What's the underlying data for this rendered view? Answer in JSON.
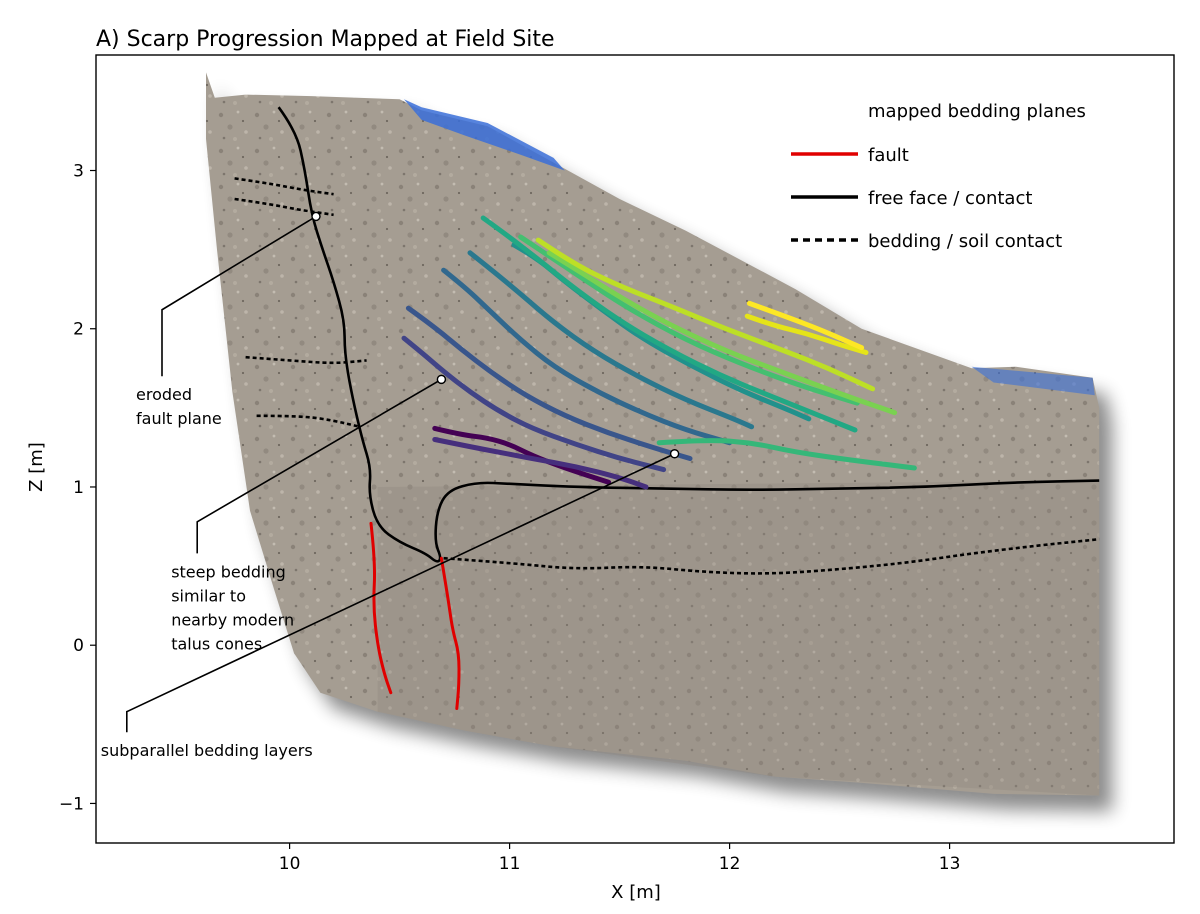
{
  "chart_data": {
    "type": "line",
    "title": "A) Scarp Progression Mapped at Field Site",
    "xlabel": "X [m]",
    "ylabel": "Z [m]",
    "xlim": [
      9.12,
      14.02
    ],
    "ylim": [
      -1.25,
      3.73
    ],
    "xticks": [
      10,
      11,
      12,
      13
    ],
    "yticks": [
      -1,
      0,
      1,
      2,
      3
    ],
    "xtick_labels": [
      "10",
      "11",
      "12",
      "13"
    ],
    "ytick_labels": [
      "−1",
      "0",
      "1",
      "2",
      "3"
    ],
    "grid": false,
    "legend_position": "top-right",
    "legend": [
      {
        "label": "mapped bedding planes",
        "style": "viridis-gradient"
      },
      {
        "label": "fault",
        "style": "solid",
        "color": "#e00000"
      },
      {
        "label": "free face / contact",
        "style": "solid",
        "color": "#000000"
      },
      {
        "label": "bedding / soil contact",
        "style": "dashed",
        "color": "#000000"
      }
    ],
    "colors": {
      "fault": "#e00000",
      "contact": "#000000",
      "photo_rock": "#a59d92",
      "photo_sky": "#3a6fd8"
    },
    "photo_outline": [
      [
        9.62,
        3.62
      ],
      [
        9.66,
        3.46
      ],
      [
        9.8,
        3.48
      ],
      [
        10.1,
        3.47
      ],
      [
        10.5,
        3.45
      ],
      [
        10.6,
        3.38
      ],
      [
        10.9,
        3.28
      ],
      [
        11.2,
        3.05
      ],
      [
        11.5,
        2.82
      ],
      [
        11.8,
        2.62
      ],
      [
        12.3,
        2.25
      ],
      [
        12.6,
        2.0
      ],
      [
        13.1,
        1.75
      ],
      [
        13.3,
        1.76
      ],
      [
        13.65,
        1.69
      ],
      [
        13.68,
        1.5
      ],
      [
        13.68,
        -0.95
      ],
      [
        13.2,
        -0.94
      ],
      [
        12.6,
        -0.87
      ],
      [
        12.2,
        -0.83
      ],
      [
        11.8,
        -0.73
      ],
      [
        11.2,
        -0.64
      ],
      [
        10.8,
        -0.54
      ],
      [
        10.4,
        -0.42
      ],
      [
        10.14,
        -0.3
      ],
      [
        10.02,
        -0.05
      ],
      [
        9.93,
        0.35
      ],
      [
        9.82,
        0.85
      ],
      [
        9.74,
        1.6
      ],
      [
        9.67,
        2.5
      ],
      [
        9.62,
        3.2
      ]
    ],
    "bedding_planes": [
      {
        "color": "#440154",
        "points": [
          [
            10.66,
            1.37
          ],
          [
            10.78,
            1.33
          ],
          [
            10.9,
            1.31
          ],
          [
            11.0,
            1.27
          ],
          [
            11.1,
            1.2
          ],
          [
            11.25,
            1.12
          ],
          [
            11.45,
            1.03
          ]
        ]
      },
      {
        "color": "#462f7d",
        "points": [
          [
            10.66,
            1.3
          ],
          [
            10.8,
            1.26
          ],
          [
            10.95,
            1.22
          ],
          [
            11.1,
            1.18
          ],
          [
            11.3,
            1.13
          ],
          [
            11.5,
            1.06
          ],
          [
            11.62,
            1.0
          ]
        ]
      },
      {
        "color": "#414487",
        "points": [
          [
            10.52,
            1.94
          ],
          [
            10.6,
            1.85
          ],
          [
            10.7,
            1.73
          ],
          [
            10.82,
            1.6
          ],
          [
            10.95,
            1.48
          ],
          [
            11.1,
            1.37
          ],
          [
            11.3,
            1.27
          ],
          [
            11.5,
            1.18
          ],
          [
            11.7,
            1.11
          ]
        ]
      },
      {
        "color": "#39568c",
        "points": [
          [
            10.54,
            2.13
          ],
          [
            10.65,
            2.02
          ],
          [
            10.78,
            1.87
          ],
          [
            10.92,
            1.72
          ],
          [
            11.07,
            1.58
          ],
          [
            11.25,
            1.45
          ],
          [
            11.45,
            1.34
          ],
          [
            11.65,
            1.25
          ],
          [
            11.82,
            1.18
          ]
        ]
      },
      {
        "color": "#31688e",
        "points": [
          [
            10.7,
            2.37
          ],
          [
            10.8,
            2.26
          ],
          [
            10.92,
            2.1
          ],
          [
            11.05,
            1.93
          ],
          [
            11.2,
            1.76
          ],
          [
            11.4,
            1.6
          ],
          [
            11.6,
            1.47
          ],
          [
            11.8,
            1.36
          ],
          [
            12.0,
            1.28
          ]
        ]
      },
      {
        "color": "#2a788e",
        "points": [
          [
            10.82,
            2.48
          ],
          [
            10.92,
            2.37
          ],
          [
            11.05,
            2.22
          ],
          [
            11.2,
            2.04
          ],
          [
            11.38,
            1.86
          ],
          [
            11.58,
            1.7
          ],
          [
            11.8,
            1.55
          ],
          [
            12.02,
            1.43
          ],
          [
            12.1,
            1.38
          ]
        ]
      },
      {
        "color": "#21918c",
        "points": [
          [
            11.02,
            2.53
          ],
          [
            11.12,
            2.45
          ],
          [
            11.25,
            2.3
          ],
          [
            11.42,
            2.12
          ],
          [
            11.6,
            1.94
          ],
          [
            11.82,
            1.77
          ],
          [
            12.05,
            1.61
          ],
          [
            12.28,
            1.48
          ],
          [
            12.36,
            1.43
          ]
        ]
      },
      {
        "color": "#22a884",
        "points": [
          [
            10.88,
            2.7
          ],
          [
            10.98,
            2.6
          ],
          [
            11.12,
            2.45
          ],
          [
            11.3,
            2.25
          ],
          [
            11.5,
            2.05
          ],
          [
            11.72,
            1.87
          ],
          [
            11.98,
            1.69
          ],
          [
            12.25,
            1.54
          ],
          [
            12.57,
            1.36
          ]
        ]
      },
      {
        "color": "#44bf70",
        "points": [
          [
            11.05,
            2.58
          ],
          [
            11.18,
            2.46
          ],
          [
            11.35,
            2.3
          ],
          [
            11.55,
            2.12
          ],
          [
            11.8,
            1.93
          ],
          [
            12.05,
            1.78
          ],
          [
            12.32,
            1.64
          ],
          [
            12.58,
            1.53
          ]
        ]
      },
      {
        "color": "#7ad151",
        "points": [
          [
            11.18,
            2.48
          ],
          [
            11.32,
            2.36
          ],
          [
            11.5,
            2.2
          ],
          [
            11.72,
            2.03
          ],
          [
            11.98,
            1.86
          ],
          [
            12.25,
            1.72
          ],
          [
            12.52,
            1.58
          ],
          [
            12.75,
            1.47
          ]
        ]
      },
      {
        "color": "#bddf26",
        "points": [
          [
            11.13,
            2.56
          ],
          [
            11.28,
            2.42
          ],
          [
            11.48,
            2.28
          ],
          [
            11.72,
            2.15
          ],
          [
            11.98,
            2.0
          ],
          [
            12.25,
            1.86
          ],
          [
            12.45,
            1.75
          ],
          [
            12.65,
            1.62
          ]
        ]
      },
      {
        "color": "#e5e419",
        "points": [
          [
            12.08,
            2.08
          ],
          [
            12.2,
            2.02
          ],
          [
            12.35,
            1.97
          ],
          [
            12.5,
            1.9
          ],
          [
            12.62,
            1.85
          ]
        ]
      },
      {
        "color": "#fde725",
        "points": [
          [
            12.09,
            2.16
          ],
          [
            12.25,
            2.08
          ],
          [
            12.42,
            1.99
          ],
          [
            12.6,
            1.88
          ]
        ]
      },
      {
        "color": "#35b779",
        "points": [
          [
            11.68,
            1.28
          ],
          [
            11.9,
            1.3
          ],
          [
            12.1,
            1.28
          ],
          [
            12.3,
            1.22
          ],
          [
            12.55,
            1.17
          ],
          [
            12.84,
            1.12
          ]
        ]
      }
    ],
    "faults": [
      [
        [
          10.37,
          0.77
        ],
        [
          10.39,
          0.52
        ],
        [
          10.38,
          0.25
        ],
        [
          10.4,
          0.0
        ],
        [
          10.43,
          -0.18
        ],
        [
          10.46,
          -0.3
        ]
      ],
      [
        [
          10.69,
          0.55
        ],
        [
          10.72,
          0.3
        ],
        [
          10.74,
          0.1
        ],
        [
          10.77,
          -0.05
        ],
        [
          10.77,
          -0.25
        ],
        [
          10.76,
          -0.4
        ]
      ]
    ],
    "contacts": [
      [
        [
          9.95,
          3.4
        ],
        [
          10.03,
          3.25
        ],
        [
          10.07,
          3.0
        ],
        [
          10.1,
          2.72
        ],
        [
          10.15,
          2.5
        ],
        [
          10.2,
          2.3
        ],
        [
          10.25,
          2.05
        ],
        [
          10.25,
          1.85
        ],
        [
          10.28,
          1.6
        ],
        [
          10.33,
          1.3
        ],
        [
          10.37,
          1.12
        ],
        [
          10.36,
          0.95
        ],
        [
          10.4,
          0.75
        ],
        [
          10.5,
          0.65
        ],
        [
          10.62,
          0.58
        ],
        [
          10.67,
          0.52
        ],
        [
          10.69,
          0.55
        ],
        [
          10.66,
          0.65
        ],
        [
          10.67,
          0.85
        ],
        [
          10.72,
          0.98
        ],
        [
          10.85,
          1.03
        ],
        [
          11.0,
          1.02
        ],
        [
          11.3,
          1.0
        ],
        [
          11.7,
          0.99
        ],
        [
          12.1,
          0.98
        ],
        [
          12.5,
          0.99
        ],
        [
          12.9,
          1.0
        ],
        [
          13.3,
          1.03
        ],
        [
          13.68,
          1.04
        ]
      ]
    ],
    "soil_contacts": [
      [
        [
          9.75,
          2.95
        ],
        [
          9.9,
          2.92
        ],
        [
          10.05,
          2.88
        ],
        [
          10.2,
          2.85
        ]
      ],
      [
        [
          9.75,
          2.82
        ],
        [
          9.9,
          2.79
        ],
        [
          10.05,
          2.75
        ],
        [
          10.2,
          2.72
        ]
      ],
      [
        [
          9.8,
          1.82
        ],
        [
          10.0,
          1.8
        ],
        [
          10.2,
          1.78
        ],
        [
          10.35,
          1.8
        ]
      ],
      [
        [
          9.85,
          1.45
        ],
        [
          10.05,
          1.45
        ],
        [
          10.2,
          1.42
        ],
        [
          10.32,
          1.38
        ]
      ],
      [
        [
          10.7,
          0.55
        ],
        [
          11.0,
          0.52
        ],
        [
          11.3,
          0.48
        ],
        [
          11.6,
          0.5
        ],
        [
          11.9,
          0.46
        ],
        [
          12.2,
          0.45
        ],
        [
          12.5,
          0.48
        ],
        [
          12.8,
          0.52
        ],
        [
          13.1,
          0.58
        ],
        [
          13.4,
          0.63
        ],
        [
          13.68,
          0.67
        ]
      ]
    ],
    "annotations": [
      {
        "lines": [
          "eroded",
          "fault plane"
        ],
        "target": [
          10.12,
          2.71
        ],
        "elbow": [
          9.42,
          1.7
        ],
        "knee": [
          9.42,
          2.12
        ]
      },
      {
        "lines": [
          "steep bedding",
          "similar to",
          "nearby modern",
          "talus cones"
        ],
        "target": [
          10.69,
          1.68
        ],
        "elbow": [
          9.58,
          0.58
        ],
        "knee": [
          9.58,
          0.78
        ]
      },
      {
        "lines": [
          "subparallel bedding layers"
        ],
        "target": [
          11.75,
          1.21
        ],
        "elbow": [
          9.26,
          -0.55
        ],
        "knee": [
          9.26,
          -0.42
        ]
      }
    ]
  }
}
